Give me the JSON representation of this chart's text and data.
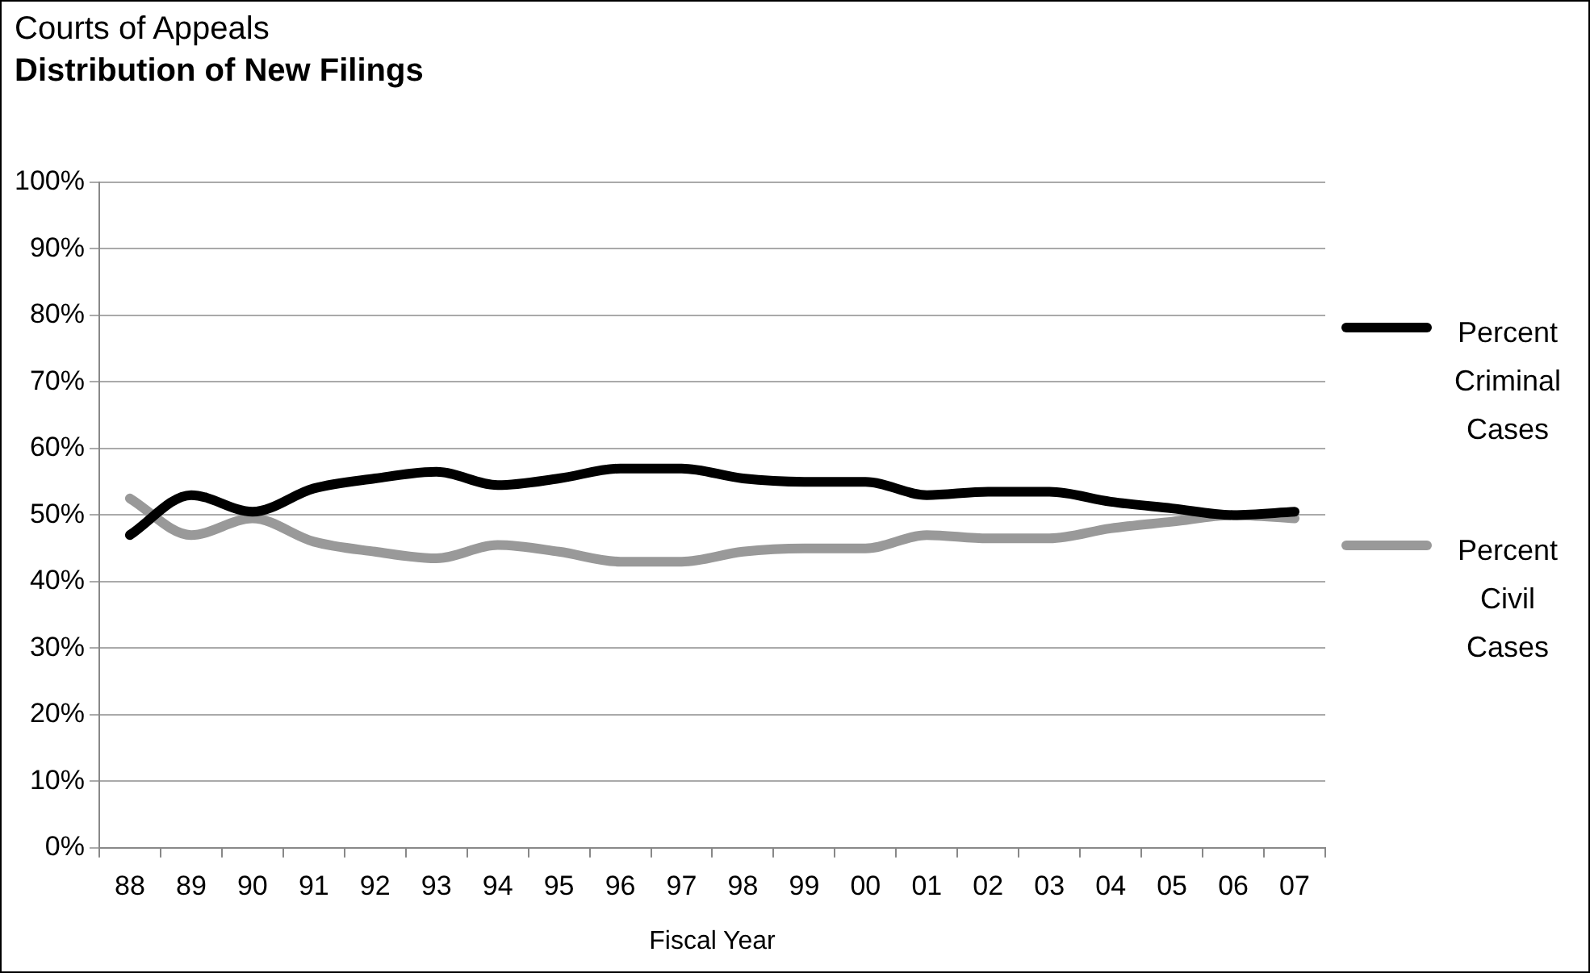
{
  "chart_data": {
    "type": "line",
    "title": "Courts of Appeals",
    "subtitle": "Distribution of New Filings",
    "xlabel": "Fiscal Year",
    "categories": [
      "88",
      "89",
      "90",
      "91",
      "92",
      "93",
      "94",
      "95",
      "96",
      "97",
      "98",
      "99",
      "00",
      "01",
      "02",
      "03",
      "04",
      "05",
      "06",
      "07"
    ],
    "series": [
      {
        "name": "Percent Criminal Cases",
        "color": "#000000",
        "values": [
          47,
          53,
          50.5,
          54,
          55.5,
          56.5,
          54.5,
          55.5,
          57,
          57,
          55.5,
          55,
          55,
          53,
          53.5,
          53.5,
          52,
          51,
          50,
          50.5
        ]
      },
      {
        "name": "Percent Civil Cases",
        "color": "#999999",
        "values": [
          52.5,
          47,
          49.5,
          46,
          44.5,
          43.5,
          45.5,
          44.5,
          43,
          43,
          44.5,
          45,
          45,
          47,
          46.5,
          46.5,
          48,
          49,
          50,
          49.5
        ]
      }
    ],
    "ylim": [
      0,
      100
    ],
    "yticks": [
      {
        "value": 0,
        "label": "0%"
      },
      {
        "value": 10,
        "label": "10%"
      },
      {
        "value": 20,
        "label": "20%"
      },
      {
        "value": 30,
        "label": "30%"
      },
      {
        "value": 40,
        "label": "40%"
      },
      {
        "value": 50,
        "label": "50%"
      },
      {
        "value": 60,
        "label": "60%"
      },
      {
        "value": 70,
        "label": "70%"
      },
      {
        "value": 80,
        "label": "80%"
      },
      {
        "value": 90,
        "label": "90%"
      },
      {
        "value": 100,
        "label": "100%"
      }
    ],
    "grid": "y",
    "legend": "right",
    "line_style": "solid"
  }
}
